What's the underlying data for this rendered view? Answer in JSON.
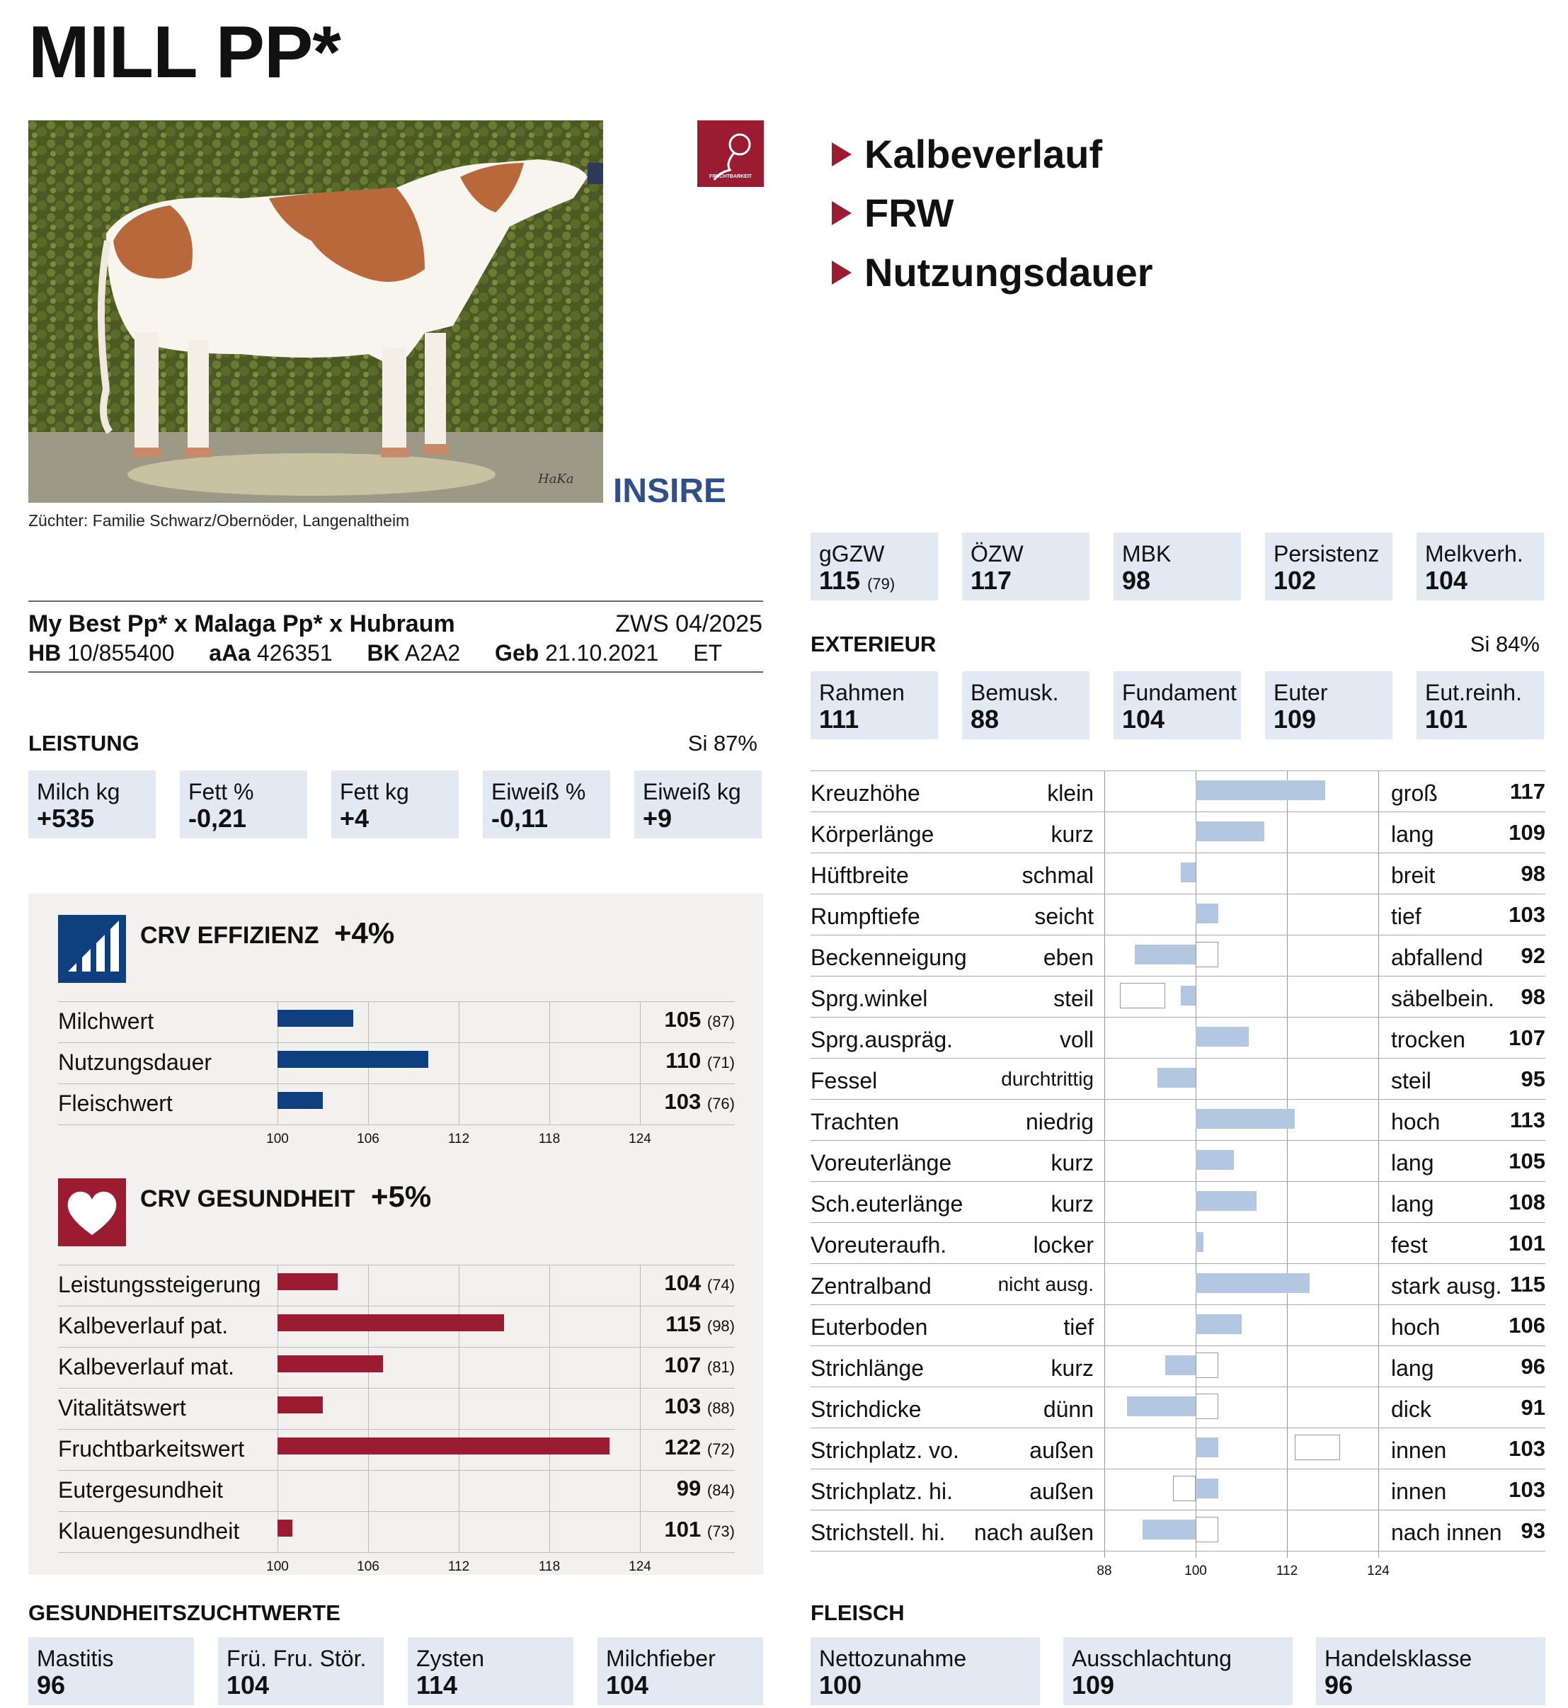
{
  "title": "MILL PP*",
  "caption": "Züchter: Familie Schwarz/Obernöder, Langenaltheim",
  "badge_text": "FRUCHTBARKEIT",
  "insire": "INSIRE",
  "photo_watermark": "HaKa",
  "highlights": [
    "Kalbeverlauf",
    "FRW",
    "Nutzungsdauer"
  ],
  "pedigree": {
    "line": "My Best Pp* x Malaga Pp* x Hubraum",
    "zws": "ZWS 04/2025",
    "hb_label": "HB",
    "hb": "10/855400",
    "aaa_label": "aAa",
    "aaa": "426351",
    "bk_label": "BK",
    "bk": "A2A2",
    "geb_label": "Geb",
    "geb": "21.10.2021",
    "et": "ET"
  },
  "zw_boxes": [
    {
      "label": "gGZW",
      "value": "115",
      "sub": "(79)"
    },
    {
      "label": "ÖZW",
      "value": "117",
      "sub": ""
    },
    {
      "label": "MBK",
      "value": "98",
      "sub": ""
    },
    {
      "label": "Persistenz",
      "value": "102",
      "sub": ""
    },
    {
      "label": "Melkverh.",
      "value": "104",
      "sub": ""
    }
  ],
  "leistung": {
    "title": "LEISTUNG",
    "si": "Si 87%",
    "boxes": [
      {
        "label": "Milch kg",
        "value": "+535"
      },
      {
        "label": "Fett %",
        "value": "-0,21"
      },
      {
        "label": "Fett kg",
        "value": "+4"
      },
      {
        "label": "Eiweiß %",
        "value": "-0,11"
      },
      {
        "label": "Eiweiß kg",
        "value": "+9"
      }
    ]
  },
  "exterieur": {
    "title": "EXTERIEUR",
    "si": "Si 84%",
    "boxes": [
      {
        "label": "Rahmen",
        "value": "111"
      },
      {
        "label": "Bemusk.",
        "value": "88"
      },
      {
        "label": "Fundament",
        "value": "104"
      },
      {
        "label": "Euter",
        "value": "109"
      },
      {
        "label": "Eut.reinh.",
        "value": "101"
      }
    ]
  },
  "chart_data": [
    {
      "type": "bar",
      "title": "CRV EFFIZIENZ",
      "summary": "+4%",
      "color": "#0f3f7f",
      "axis_ticks": [
        "100",
        "106",
        "112",
        "118",
        "124"
      ],
      "xlim": [
        100,
        130
      ],
      "categories": [
        "Milchwert",
        "Nutzungsdauer",
        "Fleischwert"
      ],
      "values": [
        105,
        110,
        103
      ],
      "reliability": [
        "(87)",
        "(71)",
        "(76)"
      ]
    },
    {
      "type": "bar",
      "title": "CRV GESUNDHEIT",
      "summary": "+5%",
      "color": "#9b1b30",
      "axis_ticks": [
        "100",
        "106",
        "112",
        "118",
        "124"
      ],
      "xlim": [
        100,
        130
      ],
      "categories": [
        "Leistungssteigerung",
        "Kalbeverlauf pat.",
        "Kalbeverlauf mat.",
        "Vitalitätswert",
        "Fruchtbarkeitswert",
        "Eutergesundheit",
        "Klauengesundheit"
      ],
      "values": [
        104,
        115,
        107,
        103,
        122,
        99,
        101
      ],
      "reliability": [
        "(74)",
        "(98)",
        "(81)",
        "(88)",
        "(72)",
        "(84)",
        "(73)"
      ]
    },
    {
      "type": "bar",
      "title": "",
      "color": "#b3c8e0",
      "axis_ticks": [
        "88",
        "100",
        "112",
        "124"
      ],
      "xlim": [
        88,
        124
      ],
      "categories": [
        "Kreuzhöhe",
        "Körperlänge",
        "Hüftbreite",
        "Rumpftiefe",
        "Beckenneigung",
        "Sprg.winkel",
        "Sprg.auspräg.",
        "Fessel",
        "Trachten",
        "Voreuterlänge",
        "Sch.euterlänge",
        "Voreuteraufh.",
        "Zentralband",
        "Euterboden",
        "Strichlänge",
        "Strichdicke",
        "Strichplatz. vo.",
        "Strichplatz. hi.",
        "Strichstell. hi."
      ],
      "low_labels": [
        "klein",
        "kurz",
        "schmal",
        "seicht",
        "eben",
        "steil",
        "voll",
        "durchtrittig",
        "niedrig",
        "kurz",
        "kurz",
        "locker",
        "nicht ausg.",
        "tief",
        "kurz",
        "dünn",
        "außen",
        "außen",
        "nach außen"
      ],
      "high_labels": [
        "groß",
        "lang",
        "breit",
        "tief",
        "abfallend",
        "säbelbein.",
        "trocken",
        "steil",
        "hoch",
        "lang",
        "lang",
        "fest",
        "stark ausg.",
        "hoch",
        "lang",
        "dick",
        "innen",
        "innen",
        "nach innen"
      ],
      "values": [
        117,
        109,
        98,
        103,
        92,
        98,
        107,
        95,
        113,
        105,
        108,
        101,
        115,
        106,
        96,
        91,
        103,
        103,
        93
      ],
      "optimum": [
        null,
        null,
        null,
        null,
        [
          100,
          103
        ],
        [
          90,
          96
        ],
        null,
        null,
        null,
        null,
        null,
        null,
        null,
        null,
        [
          100,
          103
        ],
        [
          100,
          103
        ],
        [
          113,
          119
        ],
        [
          97,
          100
        ],
        [
          100,
          103
        ]
      ]
    }
  ],
  "gesundheit": {
    "title": "GESUNDHEITSZUCHTWERTE",
    "boxes": [
      {
        "label": "Mastitis",
        "value": "96"
      },
      {
        "label": "Frü. Fru. Stör.",
        "value": "104"
      },
      {
        "label": "Zysten",
        "value": "114"
      },
      {
        "label": "Milchfieber",
        "value": "104"
      }
    ]
  },
  "fleisch": {
    "title": "FLEISCH",
    "boxes": [
      {
        "label": "Nettozunahme",
        "value": "100"
      },
      {
        "label": "Ausschlachtung",
        "value": "109"
      },
      {
        "label": "Handelsklasse",
        "value": "96"
      }
    ]
  }
}
